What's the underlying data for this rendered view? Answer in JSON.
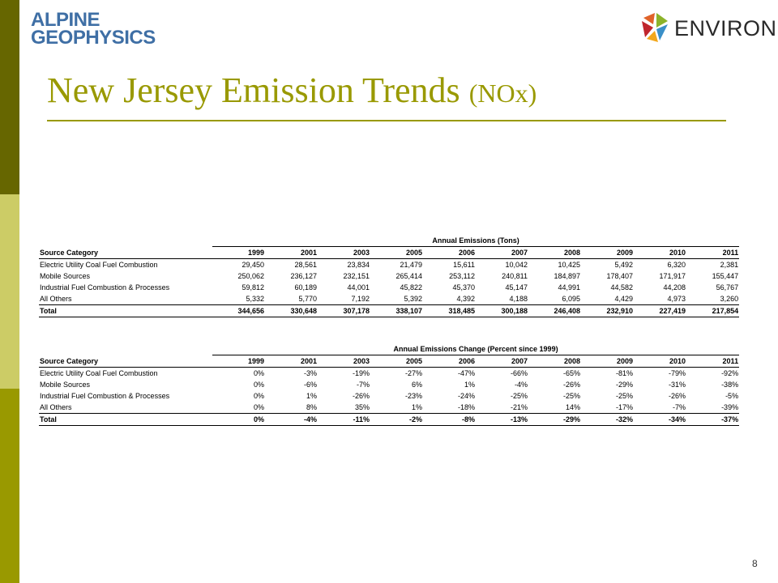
{
  "logos": {
    "left_line1": "ALPINE",
    "left_line2": "GEOPHYSICS",
    "right_name": "ENVIRON"
  },
  "title": {
    "main": "New Jersey Emission Trends",
    "sub": "(NOx)"
  },
  "table_emissions": {
    "caption": "Annual Emissions (Tons)",
    "category_header": "Source Category",
    "years": [
      "1999",
      "2001",
      "2003",
      "2005",
      "2006",
      "2007",
      "2008",
      "2009",
      "2010",
      "2011"
    ],
    "rows": [
      {
        "category": "Electric Utility Coal Fuel Combustion",
        "values": [
          "29,450",
          "28,561",
          "23,834",
          "21,479",
          "15,611",
          "10,042",
          "10,425",
          "5,492",
          "6,320",
          "2,381"
        ]
      },
      {
        "category": "Mobile Sources",
        "values": [
          "250,062",
          "236,127",
          "232,151",
          "265,414",
          "253,112",
          "240,811",
          "184,897",
          "178,407",
          "171,917",
          "155,447"
        ]
      },
      {
        "category": "Industrial Fuel Combustion & Processes",
        "values": [
          "59,812",
          "60,189",
          "44,001",
          "45,822",
          "45,370",
          "45,147",
          "44,991",
          "44,582",
          "44,208",
          "56,767"
        ]
      },
      {
        "category": "All Others",
        "values": [
          "5,332",
          "5,770",
          "7,192",
          "5,392",
          "4,392",
          "4,188",
          "6,095",
          "4,429",
          "4,973",
          "3,260"
        ]
      }
    ],
    "total": {
      "category": "Total",
      "values": [
        "344,656",
        "330,648",
        "307,178",
        "338,107",
        "318,485",
        "300,188",
        "246,408",
        "232,910",
        "227,419",
        "217,854"
      ]
    }
  },
  "table_change": {
    "caption": "Annual Emissions Change (Percent since 1999)",
    "category_header": "Source Category",
    "years": [
      "1999",
      "2001",
      "2003",
      "2005",
      "2006",
      "2007",
      "2008",
      "2009",
      "2010",
      "2011"
    ],
    "rows": [
      {
        "category": "Electric Utility Coal Fuel Combustion",
        "values": [
          "0%",
          "-3%",
          "-19%",
          "-27%",
          "-47%",
          "-66%",
          "-65%",
          "-81%",
          "-79%",
          "-92%"
        ]
      },
      {
        "category": "Mobile Sources",
        "values": [
          "0%",
          "-6%",
          "-7%",
          "6%",
          "1%",
          "-4%",
          "-26%",
          "-29%",
          "-31%",
          "-38%"
        ]
      },
      {
        "category": "Industrial Fuel Combustion & Processes",
        "values": [
          "0%",
          "1%",
          "-26%",
          "-23%",
          "-24%",
          "-25%",
          "-25%",
          "-25%",
          "-26%",
          "-5%"
        ]
      },
      {
        "category": "All Others",
        "values": [
          "0%",
          "8%",
          "35%",
          "1%",
          "-18%",
          "-21%",
          "14%",
          "-17%",
          "-7%",
          "-39%"
        ]
      }
    ],
    "total": {
      "category": "Total",
      "values": [
        "0%",
        "-4%",
        "-11%",
        "-2%",
        "-8%",
        "-13%",
        "-29%",
        "-32%",
        "-34%",
        "-37%"
      ]
    }
  },
  "page_number": "8",
  "colors": {
    "accent": "#999900",
    "bar_dark": "#666600",
    "bar_light": "#cccc66",
    "alpine_blue": "#3f6fa5"
  }
}
